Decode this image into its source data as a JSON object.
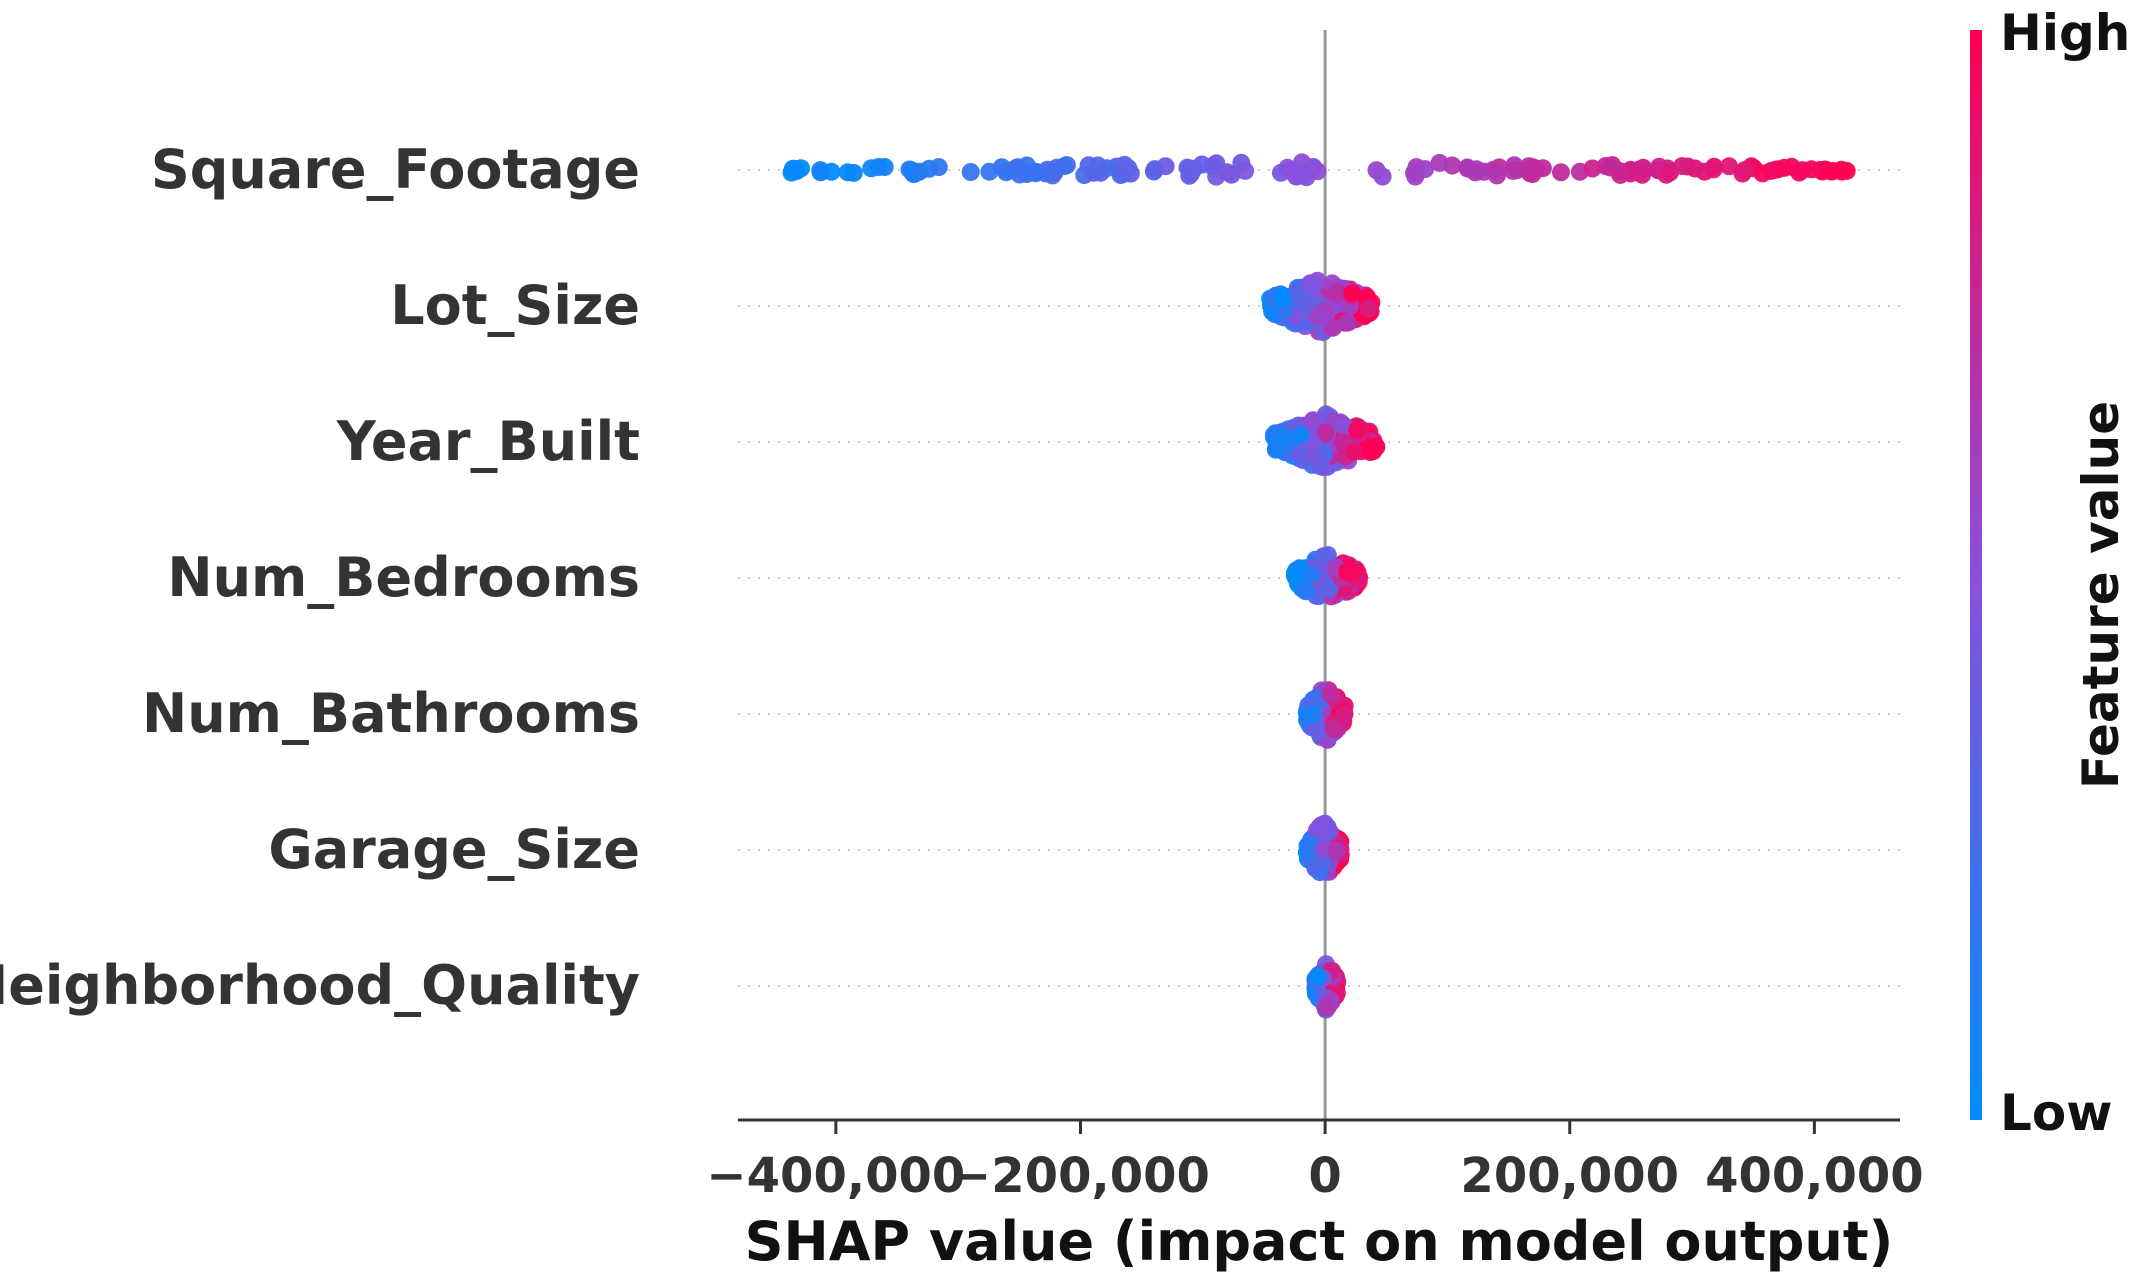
{
  "chart_data": {
    "type": "scatter",
    "subtype": "shap-beeswarm",
    "title": "",
    "xlabel": "SHAP value (impact on model output)",
    "ylabel": "",
    "xlim": [
      -480000,
      470000
    ],
    "xticks": [
      -400000,
      -200000,
      0,
      200000,
      400000
    ],
    "xtick_labels": [
      "−400,000",
      "−200,000",
      "0",
      "200,000",
      "400,000"
    ],
    "features": [
      {
        "name": "Square_Footage",
        "range": [
          -440000,
          430000
        ],
        "spread": 0.25
      },
      {
        "name": "Lot_Size",
        "range": [
          -45000,
          38000
        ],
        "spread": 0.8
      },
      {
        "name": "Year_Built",
        "range": [
          -42000,
          42000
        ],
        "spread": 0.8
      },
      {
        "name": "Num_Bedrooms",
        "range": [
          -25000,
          28000
        ],
        "spread": 0.7
      },
      {
        "name": "Num_Bathrooms",
        "range": [
          -15000,
          16000
        ],
        "spread": 0.8
      },
      {
        "name": "Garage_Size",
        "range": [
          -15000,
          13000
        ],
        "spread": 0.8
      },
      {
        "name": "Neighborhood_Quality",
        "range": [
          -8000,
          10000
        ],
        "spread": 0.7
      }
    ],
    "colorbar": {
      "high_label": "High",
      "low_label": "Low",
      "title": "Feature value",
      "low_color": "#008bfb",
      "high_color": "#ff0052"
    },
    "grid": false,
    "legend": "colorbar-right"
  }
}
